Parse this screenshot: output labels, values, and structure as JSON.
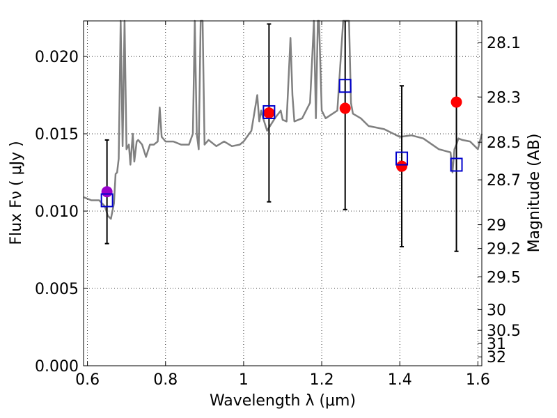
{
  "chart_data": {
    "type": "scatter",
    "title": "",
    "xlabel": "Wavelength  λ (μm)",
    "ylabel": "Flux  Fν  ( μJy )",
    "y2label": "Magnitude (AB)",
    "xlim": [
      0.59,
      1.61
    ],
    "ylim": [
      0.0,
      0.0223
    ],
    "grid": true,
    "x_ticks": [
      0.6,
      0.8,
      1.0,
      1.2,
      1.4,
      1.6
    ],
    "x_tick_labels": [
      "0.6",
      "0.8",
      "1",
      "1.2",
      "1.4",
      "1.6"
    ],
    "y_ticks": [
      0.0,
      0.005,
      0.01,
      0.015,
      0.02
    ],
    "y_tick_labels": [
      "0.000",
      "0.005",
      "0.010",
      "0.015",
      "0.020"
    ],
    "y2_tick_labels": [
      "28.1",
      "28.3",
      "28.5",
      "28.7",
      "29",
      "29.2",
      "29.5",
      "30",
      "30.5",
      "31",
      "32"
    ],
    "colors": {
      "spectrum": "#808080",
      "observed": "#ff0000",
      "observed_highlight": "#9900cc",
      "model": "#0000cc",
      "errorbar": "#000000"
    },
    "series": [
      {
        "kind": "line",
        "x": [
          0.59,
          0.61,
          0.63,
          0.645,
          0.652,
          0.66,
          0.668,
          0.672,
          0.676,
          0.68,
          0.685,
          0.69,
          0.695,
          0.7,
          0.706,
          0.71,
          0.716,
          0.72,
          0.726,
          0.73,
          0.74,
          0.75,
          0.76,
          0.77,
          0.78,
          0.785,
          0.79,
          0.8,
          0.82,
          0.84,
          0.86,
          0.87,
          0.875,
          0.88,
          0.885,
          0.89,
          0.895,
          0.9,
          0.91,
          0.93,
          0.95,
          0.97,
          0.99,
          1.0,
          1.02,
          1.035,
          1.04,
          1.045,
          1.05,
          1.06,
          1.08,
          1.095,
          1.1,
          1.11,
          1.12,
          1.125,
          1.13,
          1.15,
          1.17,
          1.18,
          1.185,
          1.19,
          1.193,
          1.2,
          1.21,
          1.24,
          1.255,
          1.262,
          1.27,
          1.275,
          1.28,
          1.3,
          1.32,
          1.36,
          1.4,
          1.43,
          1.46,
          1.5,
          1.53,
          1.535,
          1.54,
          1.545,
          1.55,
          1.56,
          1.58,
          1.6,
          1.61
        ],
        "y": [
          0.0109,
          0.0107,
          0.0107,
          0.0103,
          0.0097,
          0.0095,
          0.0105,
          0.0124,
          0.0125,
          0.0134,
          0.0223,
          0.0142,
          0.0223,
          0.014,
          0.0143,
          0.013,
          0.015,
          0.0132,
          0.0145,
          0.0146,
          0.0143,
          0.0135,
          0.0143,
          0.0143,
          0.0145,
          0.0167,
          0.0148,
          0.0145,
          0.0145,
          0.0143,
          0.0143,
          0.015,
          0.0223,
          0.015,
          0.014,
          0.0223,
          0.0223,
          0.0143,
          0.0146,
          0.0142,
          0.0145,
          0.0142,
          0.0143,
          0.0145,
          0.0152,
          0.0175,
          0.0158,
          0.0165,
          0.016,
          0.0152,
          0.016,
          0.0165,
          0.0159,
          0.0158,
          0.0212,
          0.0175,
          0.0158,
          0.016,
          0.017,
          0.0223,
          0.016,
          0.0223,
          0.0223,
          0.0165,
          0.016,
          0.0165,
          0.0223,
          0.0223,
          0.0223,
          0.017,
          0.0163,
          0.016,
          0.0155,
          0.0153,
          0.0148,
          0.0149,
          0.0147,
          0.014,
          0.0138,
          0.0125,
          0.014,
          0.0143,
          0.0147,
          0.0146,
          0.0145,
          0.014,
          0.015
        ]
      },
      {
        "kind": "errorbar",
        "x": [
          0.65,
          1.065,
          1.26,
          1.405,
          1.545
        ],
        "y": [
          0.01125,
          0.01635,
          0.01665,
          0.0129,
          0.01705
        ],
        "ylow": [
          0.0079,
          0.0106,
          0.0101,
          0.0077,
          0.0074
        ],
        "yhigh": [
          0.0146,
          0.0221,
          0.0223,
          0.0181,
          0.0223
        ],
        "marker_colors": [
          "#9900cc",
          "#ff0000",
          "#ff0000",
          "#ff0000",
          "#ff0000"
        ]
      },
      {
        "kind": "squares",
        "x": [
          0.65,
          1.065,
          1.26,
          1.405,
          1.545
        ],
        "y": [
          0.0107,
          0.0164,
          0.0181,
          0.0134,
          0.013
        ]
      }
    ]
  }
}
